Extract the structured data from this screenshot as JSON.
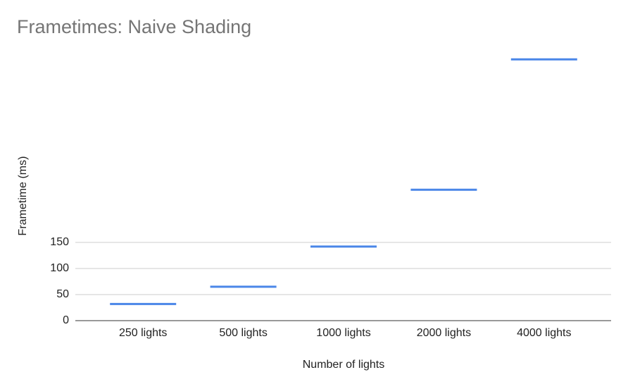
{
  "chart_data": {
    "type": "dash",
    "title": "Frametimes: Naive Shading",
    "x_label": "Number of lights",
    "y_label": "Frametime (ms)",
    "categories": [
      "250 lights",
      "500 lights",
      "1000 lights",
      "2000 lights",
      "4000 lights"
    ],
    "values": [
      32,
      65,
      142,
      251,
      501
    ],
    "color": "#4a86e8",
    "ylim": [
      0,
      520
    ],
    "yticks": [
      0,
      50,
      100,
      150
    ],
    "grid": true
  }
}
